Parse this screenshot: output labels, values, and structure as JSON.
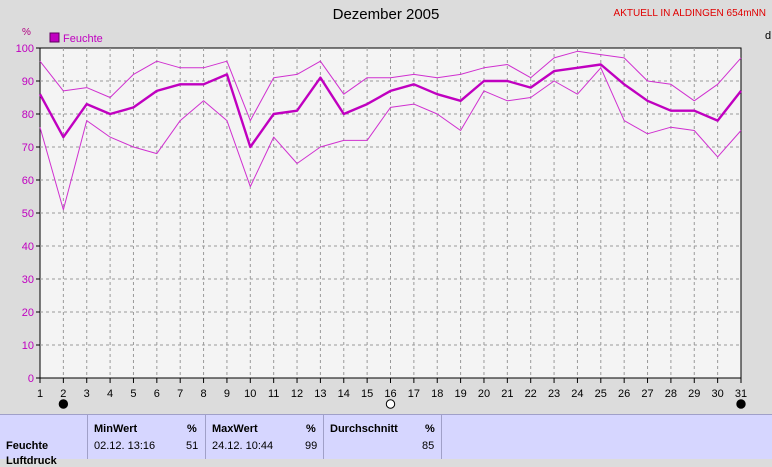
{
  "title": "Dezember 2005",
  "station": "AKTUELL IN ALDINGEN 654mNN",
  "unit_label": "%",
  "right_label": "d",
  "legend": {
    "label": "Feuchte",
    "color": "#c000c0"
  },
  "colors": {
    "line": "#c000c0",
    "thin": "#d030d0",
    "grid": "#9a9a9a",
    "plot_bg": "#f4f4f4"
  },
  "chart_data": {
    "type": "line",
    "title": "Dezember 2005",
    "ylabel": "%",
    "ylim": [
      0,
      100
    ],
    "yticks": [
      0,
      10,
      20,
      30,
      40,
      50,
      60,
      70,
      80,
      90,
      100
    ],
    "x": [
      1,
      2,
      3,
      4,
      5,
      6,
      7,
      8,
      9,
      10,
      11,
      12,
      13,
      14,
      15,
      16,
      17,
      18,
      19,
      20,
      21,
      22,
      23,
      24,
      25,
      26,
      27,
      28,
      29,
      30,
      31
    ],
    "xlim": [
      1,
      31
    ],
    "grid": true,
    "legend_position": "top-left",
    "series": [
      {
        "name": "Feuchte",
        "role": "avg",
        "values": [
          86,
          73,
          83,
          80,
          82,
          87,
          89,
          89,
          92,
          70,
          80,
          81,
          91,
          80,
          83,
          87,
          89,
          86,
          84,
          90,
          90,
          88,
          93,
          94,
          95,
          89,
          84,
          81,
          81,
          78,
          87
        ]
      },
      {
        "role": "max",
        "values": [
          96,
          87,
          88,
          85,
          92,
          96,
          94,
          94,
          96,
          78,
          91,
          92,
          96,
          86,
          91,
          91,
          92,
          91,
          92,
          94,
          95,
          91,
          97,
          99,
          98,
          97,
          90,
          89,
          84,
          89,
          97
        ]
      },
      {
        "role": "min",
        "values": [
          76,
          51,
          78,
          73,
          70,
          68,
          78,
          84,
          78,
          58,
          73,
          65,
          70,
          72,
          72,
          82,
          83,
          80,
          75,
          87,
          84,
          85,
          90,
          86,
          94,
          78,
          74,
          76,
          75,
          67,
          75
        ]
      }
    ]
  },
  "stats": {
    "row_label": "Feuchte",
    "row_label_2": "Luftdruck",
    "min": {
      "header": "MinWert",
      "unit": "%",
      "datetime": "02.12.  13:16",
      "value": "51"
    },
    "max": {
      "header": "MaxWert",
      "unit": "%",
      "datetime": "24.12.  10:44",
      "value": "99"
    },
    "avg": {
      "header": "Durchschnitt",
      "unit": "%",
      "value": "85"
    }
  }
}
